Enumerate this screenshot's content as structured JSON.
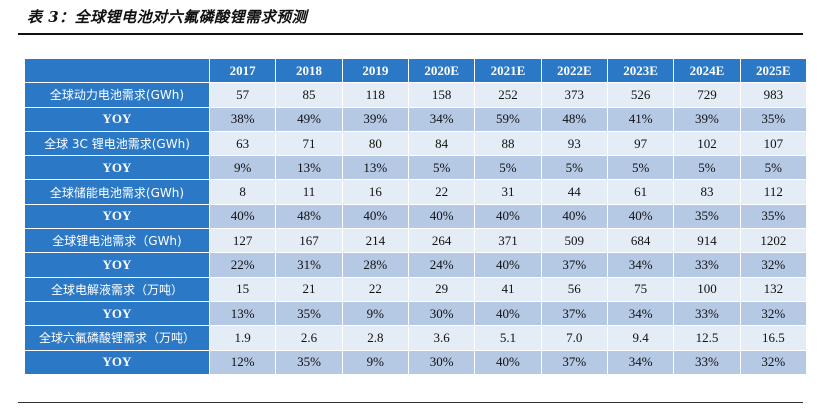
{
  "title": "表 3：全球锂电池对六氟磷酸锂需求预测",
  "table": {
    "years": [
      "2017",
      "2018",
      "2019",
      "2020E",
      "2021E",
      "2022E",
      "2023E",
      "2024E",
      "2025E"
    ],
    "rows": [
      {
        "label": "全球动力电池需求(GWh)",
        "values": [
          "57",
          "85",
          "118",
          "158",
          "252",
          "373",
          "526",
          "729",
          "983"
        ]
      },
      {
        "label": "YOY",
        "values": [
          "38%",
          "49%",
          "39%",
          "34%",
          "59%",
          "48%",
          "41%",
          "39%",
          "35%"
        ]
      },
      {
        "label": "全球 3C 锂电池需求(GWh)",
        "values": [
          "63",
          "71",
          "80",
          "84",
          "88",
          "93",
          "97",
          "102",
          "107"
        ]
      },
      {
        "label": "YOY",
        "values": [
          "9%",
          "13%",
          "13%",
          "5%",
          "5%",
          "5%",
          "5%",
          "5%",
          "5%"
        ]
      },
      {
        "label": "全球储能电池需求(GWh)",
        "values": [
          "8",
          "11",
          "16",
          "22",
          "31",
          "44",
          "61",
          "83",
          "112"
        ]
      },
      {
        "label": "YOY",
        "values": [
          "40%",
          "48%",
          "40%",
          "40%",
          "40%",
          "40%",
          "40%",
          "35%",
          "35%"
        ]
      },
      {
        "label": "全球锂电池需求（GWh)",
        "values": [
          "127",
          "167",
          "214",
          "264",
          "371",
          "509",
          "684",
          "914",
          "1202"
        ]
      },
      {
        "label": "YOY",
        "values": [
          "22%",
          "31%",
          "28%",
          "24%",
          "40%",
          "37%",
          "34%",
          "33%",
          "32%"
        ]
      },
      {
        "label": "全球电解液需求（万吨）",
        "values": [
          "15",
          "21",
          "22",
          "29",
          "41",
          "56",
          "75",
          "100",
          "132"
        ]
      },
      {
        "label": "YOY",
        "values": [
          "13%",
          "35%",
          "9%",
          "30%",
          "40%",
          "37%",
          "34%",
          "33%",
          "32%"
        ]
      },
      {
        "label": "全球六氟磷酸锂需求（万吨）",
        "values": [
          "1.9",
          "2.6",
          "2.8",
          "3.6",
          "5.1",
          "7.0",
          "9.4",
          "12.5",
          "16.5"
        ]
      },
      {
        "label": "YOY",
        "values": [
          "12%",
          "35%",
          "9%",
          "30%",
          "40%",
          "37%",
          "34%",
          "33%",
          "32%"
        ]
      }
    ]
  }
}
